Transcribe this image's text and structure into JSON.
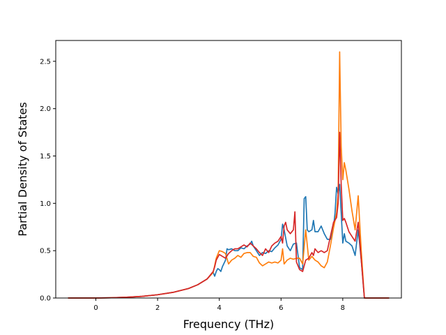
{
  "chart_data": {
    "type": "line",
    "title": "",
    "xlabel": "Frequency (THz)",
    "ylabel": "Partial Density of States",
    "xlim": [
      -1.3,
      9.9
    ],
    "ylim": [
      0.0,
      2.72
    ],
    "xticks": [
      0,
      2,
      4,
      6,
      8
    ],
    "yticks": [
      0.0,
      0.5,
      1.0,
      1.5,
      2.0,
      2.5
    ],
    "xtick_labels": [
      "0",
      "2",
      "4",
      "6",
      "8"
    ],
    "ytick_labels": [
      "0.0",
      "0.5",
      "1.0",
      "1.5",
      "2.0",
      "2.5"
    ],
    "grid": false,
    "legend": "none",
    "series": [
      {
        "color": "#1f77b4",
        "points": [
          [
            -0.9,
            0
          ],
          [
            0,
            0
          ],
          [
            0.5,
            0.003
          ],
          [
            1.0,
            0.008
          ],
          [
            1.5,
            0.018
          ],
          [
            2.0,
            0.035
          ],
          [
            2.5,
            0.06
          ],
          [
            3.0,
            0.1
          ],
          [
            3.3,
            0.14
          ],
          [
            3.6,
            0.2
          ],
          [
            3.8,
            0.27
          ],
          [
            3.85,
            0.23
          ],
          [
            3.9,
            0.28
          ],
          [
            3.95,
            0.31
          ],
          [
            4.0,
            0.3
          ],
          [
            4.05,
            0.28
          ],
          [
            4.1,
            0.33
          ],
          [
            4.2,
            0.4
          ],
          [
            4.25,
            0.52
          ],
          [
            4.3,
            0.51
          ],
          [
            4.4,
            0.52
          ],
          [
            4.5,
            0.5
          ],
          [
            4.6,
            0.5
          ],
          [
            4.7,
            0.53
          ],
          [
            4.8,
            0.52
          ],
          [
            4.9,
            0.55
          ],
          [
            5.0,
            0.57
          ],
          [
            5.05,
            0.6
          ],
          [
            5.1,
            0.55
          ],
          [
            5.2,
            0.5
          ],
          [
            5.3,
            0.45
          ],
          [
            5.4,
            0.48
          ],
          [
            5.5,
            0.47
          ],
          [
            5.6,
            0.5
          ],
          [
            5.7,
            0.49
          ],
          [
            5.8,
            0.53
          ],
          [
            5.9,
            0.56
          ],
          [
            6.0,
            0.62
          ],
          [
            6.05,
            0.78
          ],
          [
            6.1,
            0.72
          ],
          [
            6.2,
            0.55
          ],
          [
            6.3,
            0.5
          ],
          [
            6.4,
            0.57
          ],
          [
            6.5,
            0.58
          ],
          [
            6.6,
            0.32
          ],
          [
            6.7,
            0.3
          ],
          [
            6.75,
            1.05
          ],
          [
            6.8,
            1.07
          ],
          [
            6.85,
            0.72
          ],
          [
            6.9,
            0.7
          ],
          [
            7.0,
            0.72
          ],
          [
            7.05,
            0.82
          ],
          [
            7.1,
            0.7
          ],
          [
            7.2,
            0.7
          ],
          [
            7.3,
            0.76
          ],
          [
            7.4,
            0.68
          ],
          [
            7.5,
            0.62
          ],
          [
            7.6,
            0.62
          ],
          [
            7.7,
            0.75
          ],
          [
            7.75,
            0.9
          ],
          [
            7.8,
            1.17
          ],
          [
            7.85,
            1.1
          ],
          [
            7.9,
            1.2
          ],
          [
            7.95,
            0.9
          ],
          [
            8.0,
            0.58
          ],
          [
            8.05,
            0.68
          ],
          [
            8.1,
            0.6
          ],
          [
            8.2,
            0.58
          ],
          [
            8.3,
            0.55
          ],
          [
            8.4,
            0.45
          ],
          [
            8.5,
            0.72
          ],
          [
            8.6,
            0.4
          ],
          [
            8.7,
            0
          ],
          [
            9.5,
            0
          ]
        ]
      },
      {
        "color": "#ff7f0e",
        "points": [
          [
            -0.9,
            0
          ],
          [
            0,
            0
          ],
          [
            0.5,
            0.003
          ],
          [
            1.0,
            0.008
          ],
          [
            1.5,
            0.018
          ],
          [
            2.0,
            0.035
          ],
          [
            2.5,
            0.06
          ],
          [
            3.0,
            0.1
          ],
          [
            3.3,
            0.14
          ],
          [
            3.6,
            0.2
          ],
          [
            3.8,
            0.27
          ],
          [
            3.9,
            0.42
          ],
          [
            4.0,
            0.5
          ],
          [
            4.1,
            0.49
          ],
          [
            4.2,
            0.47
          ],
          [
            4.3,
            0.36
          ],
          [
            4.4,
            0.4
          ],
          [
            4.5,
            0.42
          ],
          [
            4.6,
            0.45
          ],
          [
            4.7,
            0.43
          ],
          [
            4.8,
            0.47
          ],
          [
            4.9,
            0.48
          ],
          [
            5.0,
            0.48
          ],
          [
            5.1,
            0.44
          ],
          [
            5.2,
            0.43
          ],
          [
            5.3,
            0.37
          ],
          [
            5.4,
            0.34
          ],
          [
            5.5,
            0.36
          ],
          [
            5.6,
            0.38
          ],
          [
            5.7,
            0.37
          ],
          [
            5.8,
            0.38
          ],
          [
            5.9,
            0.37
          ],
          [
            6.0,
            0.4
          ],
          [
            6.05,
            0.52
          ],
          [
            6.1,
            0.36
          ],
          [
            6.2,
            0.4
          ],
          [
            6.3,
            0.42
          ],
          [
            6.4,
            0.41
          ],
          [
            6.5,
            0.42
          ],
          [
            6.6,
            0.42
          ],
          [
            6.7,
            0.36
          ],
          [
            6.8,
            0.72
          ],
          [
            6.9,
            0.4
          ],
          [
            7.0,
            0.44
          ],
          [
            7.1,
            0.4
          ],
          [
            7.2,
            0.38
          ],
          [
            7.3,
            0.34
          ],
          [
            7.4,
            0.32
          ],
          [
            7.5,
            0.38
          ],
          [
            7.6,
            0.55
          ],
          [
            7.7,
            0.74
          ],
          [
            7.8,
            0.9
          ],
          [
            7.85,
            1.1
          ],
          [
            7.9,
            2.6
          ],
          [
            7.95,
            1.6
          ],
          [
            8.0,
            1.25
          ],
          [
            8.05,
            1.43
          ],
          [
            8.1,
            1.35
          ],
          [
            8.2,
            1.15
          ],
          [
            8.3,
            0.92
          ],
          [
            8.4,
            0.72
          ],
          [
            8.5,
            1.08
          ],
          [
            8.6,
            0.5
          ],
          [
            8.7,
            0
          ],
          [
            9.5,
            0
          ]
        ]
      },
      {
        "color": "#d62728",
        "points": [
          [
            -0.9,
            0
          ],
          [
            0,
            0
          ],
          [
            0.5,
            0.003
          ],
          [
            1.0,
            0.008
          ],
          [
            1.5,
            0.018
          ],
          [
            2.0,
            0.035
          ],
          [
            2.5,
            0.06
          ],
          [
            3.0,
            0.1
          ],
          [
            3.3,
            0.14
          ],
          [
            3.6,
            0.2
          ],
          [
            3.8,
            0.28
          ],
          [
            3.85,
            0.33
          ],
          [
            3.9,
            0.4
          ],
          [
            4.0,
            0.46
          ],
          [
            4.1,
            0.44
          ],
          [
            4.2,
            0.42
          ],
          [
            4.3,
            0.47
          ],
          [
            4.4,
            0.5
          ],
          [
            4.5,
            0.52
          ],
          [
            4.6,
            0.52
          ],
          [
            4.7,
            0.54
          ],
          [
            4.8,
            0.56
          ],
          [
            4.9,
            0.54
          ],
          [
            5.0,
            0.58
          ],
          [
            5.1,
            0.55
          ],
          [
            5.2,
            0.52
          ],
          [
            5.3,
            0.48
          ],
          [
            5.4,
            0.45
          ],
          [
            5.5,
            0.52
          ],
          [
            5.6,
            0.48
          ],
          [
            5.7,
            0.55
          ],
          [
            5.8,
            0.58
          ],
          [
            5.9,
            0.6
          ],
          [
            6.0,
            0.65
          ],
          [
            6.05,
            0.58
          ],
          [
            6.1,
            0.76
          ],
          [
            6.15,
            0.8
          ],
          [
            6.2,
            0.72
          ],
          [
            6.3,
            0.68
          ],
          [
            6.4,
            0.72
          ],
          [
            6.45,
            0.91
          ],
          [
            6.5,
            0.38
          ],
          [
            6.6,
            0.3
          ],
          [
            6.7,
            0.28
          ],
          [
            6.8,
            0.4
          ],
          [
            6.9,
            0.42
          ],
          [
            7.0,
            0.48
          ],
          [
            7.05,
            0.45
          ],
          [
            7.1,
            0.52
          ],
          [
            7.2,
            0.48
          ],
          [
            7.3,
            0.5
          ],
          [
            7.4,
            0.48
          ],
          [
            7.5,
            0.5
          ],
          [
            7.6,
            0.65
          ],
          [
            7.7,
            0.8
          ],
          [
            7.8,
            0.85
          ],
          [
            7.85,
            1.0
          ],
          [
            7.9,
            1.75
          ],
          [
            7.95,
            1.2
          ],
          [
            8.0,
            0.82
          ],
          [
            8.05,
            0.84
          ],
          [
            8.1,
            0.8
          ],
          [
            8.2,
            0.7
          ],
          [
            8.3,
            0.65
          ],
          [
            8.4,
            0.6
          ],
          [
            8.5,
            0.8
          ],
          [
            8.6,
            0.4
          ],
          [
            8.7,
            0
          ],
          [
            9.5,
            0
          ]
        ]
      }
    ]
  }
}
